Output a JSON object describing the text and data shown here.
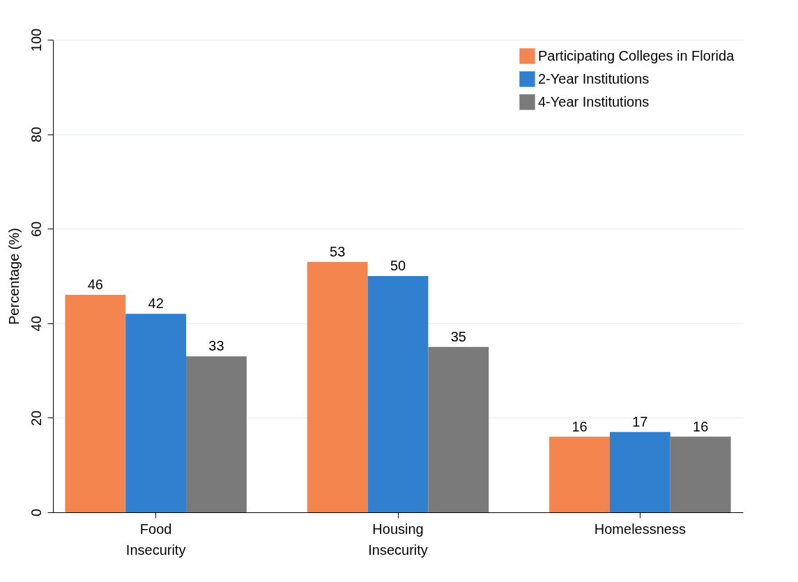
{
  "chart_data": {
    "type": "bar",
    "ylabel": "Percentage (%)",
    "categories": [
      "Food Insecurity",
      "Housing Insecurity",
      "Homelessness"
    ],
    "series": [
      {
        "name": "Participating Colleges in Florida",
        "color": "#f4854f",
        "values": [
          46,
          53,
          16
        ]
      },
      {
        "name": "2-Year Institutions",
        "color": "#3180d0",
        "values": [
          42,
          50,
          17
        ]
      },
      {
        "name": "4-Year Institutions",
        "color": "#7a7a7a",
        "values": [
          33,
          35,
          16
        ]
      }
    ],
    "ylim": [
      0,
      100
    ],
    "yticks": [
      0,
      20,
      40,
      60,
      80,
      100
    ],
    "grid": "y",
    "legend": "top right",
    "data_labels": true
  }
}
